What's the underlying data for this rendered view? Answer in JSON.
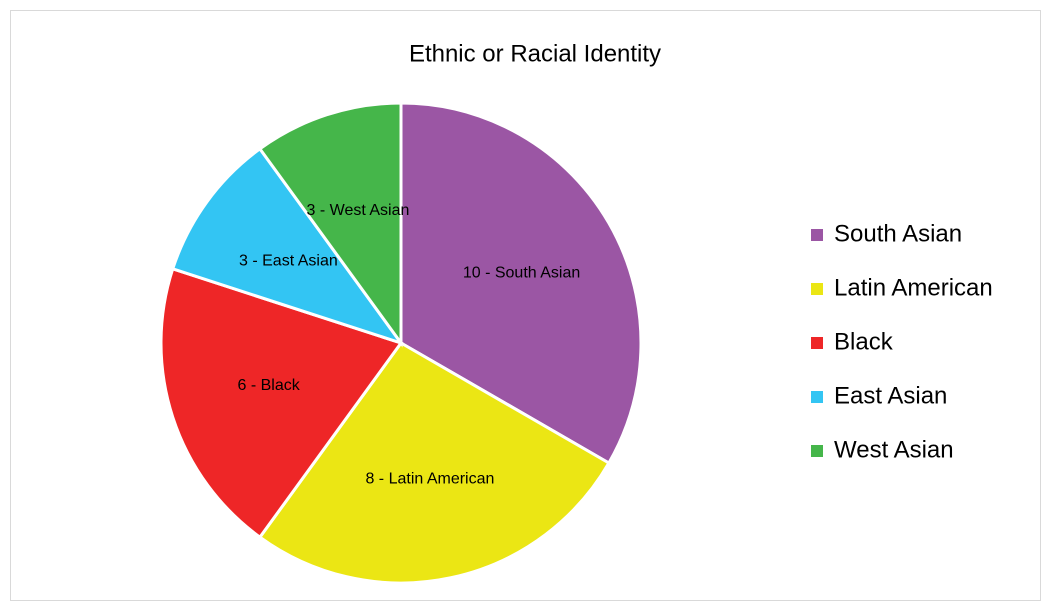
{
  "chart_data": {
    "type": "pie",
    "title": "Ethnic or Racial Identity",
    "categories": [
      "South Asian",
      "Latin American",
      "Black",
      "East Asian",
      "West Asian"
    ],
    "values": [
      10,
      8,
      6,
      3,
      3
    ],
    "value_labels": [
      "10 - South Asian",
      "8 - Latin American",
      "6 - Black",
      "3 - East Asian",
      "3 - West Asian"
    ],
    "colors": [
      "#9b56a4",
      "#ebe614",
      "#ee2627",
      "#33c5f3",
      "#45b64a"
    ],
    "legend": "right"
  }
}
